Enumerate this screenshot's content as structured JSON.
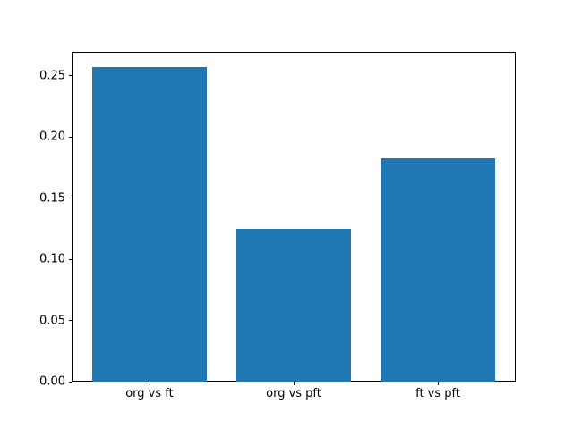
{
  "chart_data": {
    "type": "bar",
    "categories": [
      "org vs ft",
      "org vs pft",
      "ft vs pft"
    ],
    "values": [
      0.257,
      0.125,
      0.183
    ],
    "title": "",
    "xlabel": "",
    "ylabel": "",
    "ylim": [
      0,
      0.27
    ],
    "yticks": [
      0.0,
      0.05,
      0.1,
      0.15,
      0.2,
      0.25
    ],
    "ytick_labels": [
      "0.00",
      "0.05",
      "0.10",
      "0.15",
      "0.20",
      "0.25"
    ],
    "bar_width_fraction": 0.8,
    "bar_color": "#1f77b4",
    "axes_edge_color": "#000000",
    "background_color": "#ffffff",
    "grid": false,
    "legend": false
  }
}
